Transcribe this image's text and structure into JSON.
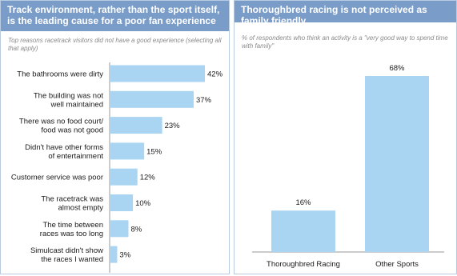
{
  "charts": {
    "left": {
      "title": "Track environment, rather than the sport itself, is the leading cause for a poor fan experience",
      "subtitle": "Top reasons racetrack visitors did not have a good experience (selecting all that apply)"
    },
    "right": {
      "title": "Thoroughbred racing is not perceived as family friendly",
      "subtitle": "% of respondents who think an activity is a \"very good way to spend time with family\""
    }
  },
  "chart_data": [
    {
      "type": "bar",
      "orientation": "horizontal",
      "title": "Track environment, rather than the sport itself, is the leading cause for a poor fan experience",
      "subtitle": "Top reasons racetrack visitors did not have a good experience (selecting all that apply)",
      "categories": [
        [
          "The bathrooms were dirty"
        ],
        [
          "The building was not",
          "well maintained"
        ],
        [
          "There was no food court/",
          "food was not good"
        ],
        [
          "Didn't have other forms",
          "of entertainment"
        ],
        [
          "Customer service was poor"
        ],
        [
          "The racetrack was",
          "almost empty"
        ],
        [
          "The time between",
          "races was too long"
        ],
        [
          "Simulcast didn't show",
          "the races I wanted"
        ]
      ],
      "values": [
        42,
        37,
        23,
        15,
        12,
        10,
        8,
        3
      ],
      "value_labels": [
        "42%",
        "37%",
        "23%",
        "15%",
        "12%",
        "10%",
        "8%",
        "3%"
      ],
      "unit": "%",
      "bar_color": "#a9d5f3"
    },
    {
      "type": "bar",
      "orientation": "vertical",
      "title": "Thoroughbred racing is not perceived as family friendly",
      "subtitle": "% of respondents who think an activity is a \"very good way to spend time with family\"",
      "categories": [
        "Thoroughbred Racing",
        "Other Sports"
      ],
      "values": [
        16,
        68
      ],
      "value_labels": [
        "16%",
        "68%"
      ],
      "unit": "%",
      "bar_color": "#a9d5f3"
    }
  ]
}
